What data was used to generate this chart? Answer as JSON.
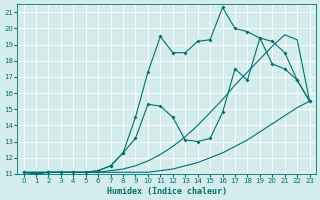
{
  "xlabel": "Humidex (Indice chaleur)",
  "bg_color": "#d4ecec",
  "grid_color": "#ffffff",
  "line_color": "#007070",
  "xlim": [
    -0.5,
    23.5
  ],
  "ylim": [
    11,
    21.5
  ],
  "xticks": [
    0,
    1,
    2,
    3,
    4,
    5,
    6,
    7,
    8,
    9,
    10,
    11,
    12,
    13,
    14,
    15,
    16,
    17,
    18,
    19,
    20,
    21,
    22,
    23
  ],
  "yticks": [
    11,
    12,
    13,
    14,
    15,
    16,
    17,
    18,
    19,
    20,
    21
  ],
  "series1_x": [
    0,
    1,
    2,
    3,
    4,
    5,
    6,
    7,
    8,
    9,
    10,
    11,
    12,
    13,
    14,
    15,
    16,
    17,
    18,
    19,
    20,
    21,
    22,
    23
  ],
  "series1_y": [
    11.1,
    11.1,
    11.1,
    11.1,
    11.1,
    11.1,
    11.1,
    11.1,
    11.1,
    11.1,
    11.1,
    11.2,
    11.3,
    11.5,
    11.7,
    12.0,
    12.3,
    12.7,
    13.1,
    13.6,
    14.1,
    14.6,
    15.1,
    15.5
  ],
  "series2_x": [
    0,
    1,
    2,
    3,
    4,
    5,
    6,
    7,
    8,
    9,
    10,
    11,
    12,
    13,
    14,
    15,
    16,
    17,
    18,
    19,
    20,
    21,
    22,
    23
  ],
  "series2_y": [
    11.1,
    11.1,
    11.1,
    11.1,
    11.1,
    11.1,
    11.1,
    11.2,
    11.3,
    11.5,
    11.8,
    12.2,
    12.7,
    13.3,
    14.0,
    14.8,
    15.6,
    16.5,
    17.3,
    18.1,
    18.9,
    19.6,
    19.3,
    15.5
  ],
  "series3_x": [
    0,
    1,
    2,
    3,
    4,
    5,
    6,
    7,
    8,
    9,
    10,
    11,
    12,
    13,
    14,
    15,
    16,
    17,
    18,
    19,
    20,
    21,
    22,
    23
  ],
  "series3_y": [
    11.1,
    11.0,
    11.1,
    11.1,
    11.1,
    11.1,
    11.2,
    11.5,
    12.3,
    13.2,
    15.3,
    15.2,
    14.5,
    13.1,
    13.0,
    13.2,
    14.8,
    17.5,
    16.8,
    19.4,
    17.8,
    17.5,
    16.8,
    15.5
  ],
  "series4_x": [
    0,
    1,
    2,
    3,
    4,
    5,
    6,
    7,
    8,
    9,
    10,
    11,
    12,
    13,
    14,
    15,
    16,
    17,
    18,
    19,
    20,
    21,
    22,
    23
  ],
  "series4_y": [
    11.1,
    11.0,
    11.1,
    11.1,
    11.1,
    11.1,
    11.2,
    11.5,
    12.3,
    14.5,
    17.3,
    19.5,
    18.5,
    18.5,
    19.2,
    19.3,
    21.3,
    20.0,
    19.8,
    19.4,
    19.2,
    18.5,
    16.8,
    15.5
  ]
}
